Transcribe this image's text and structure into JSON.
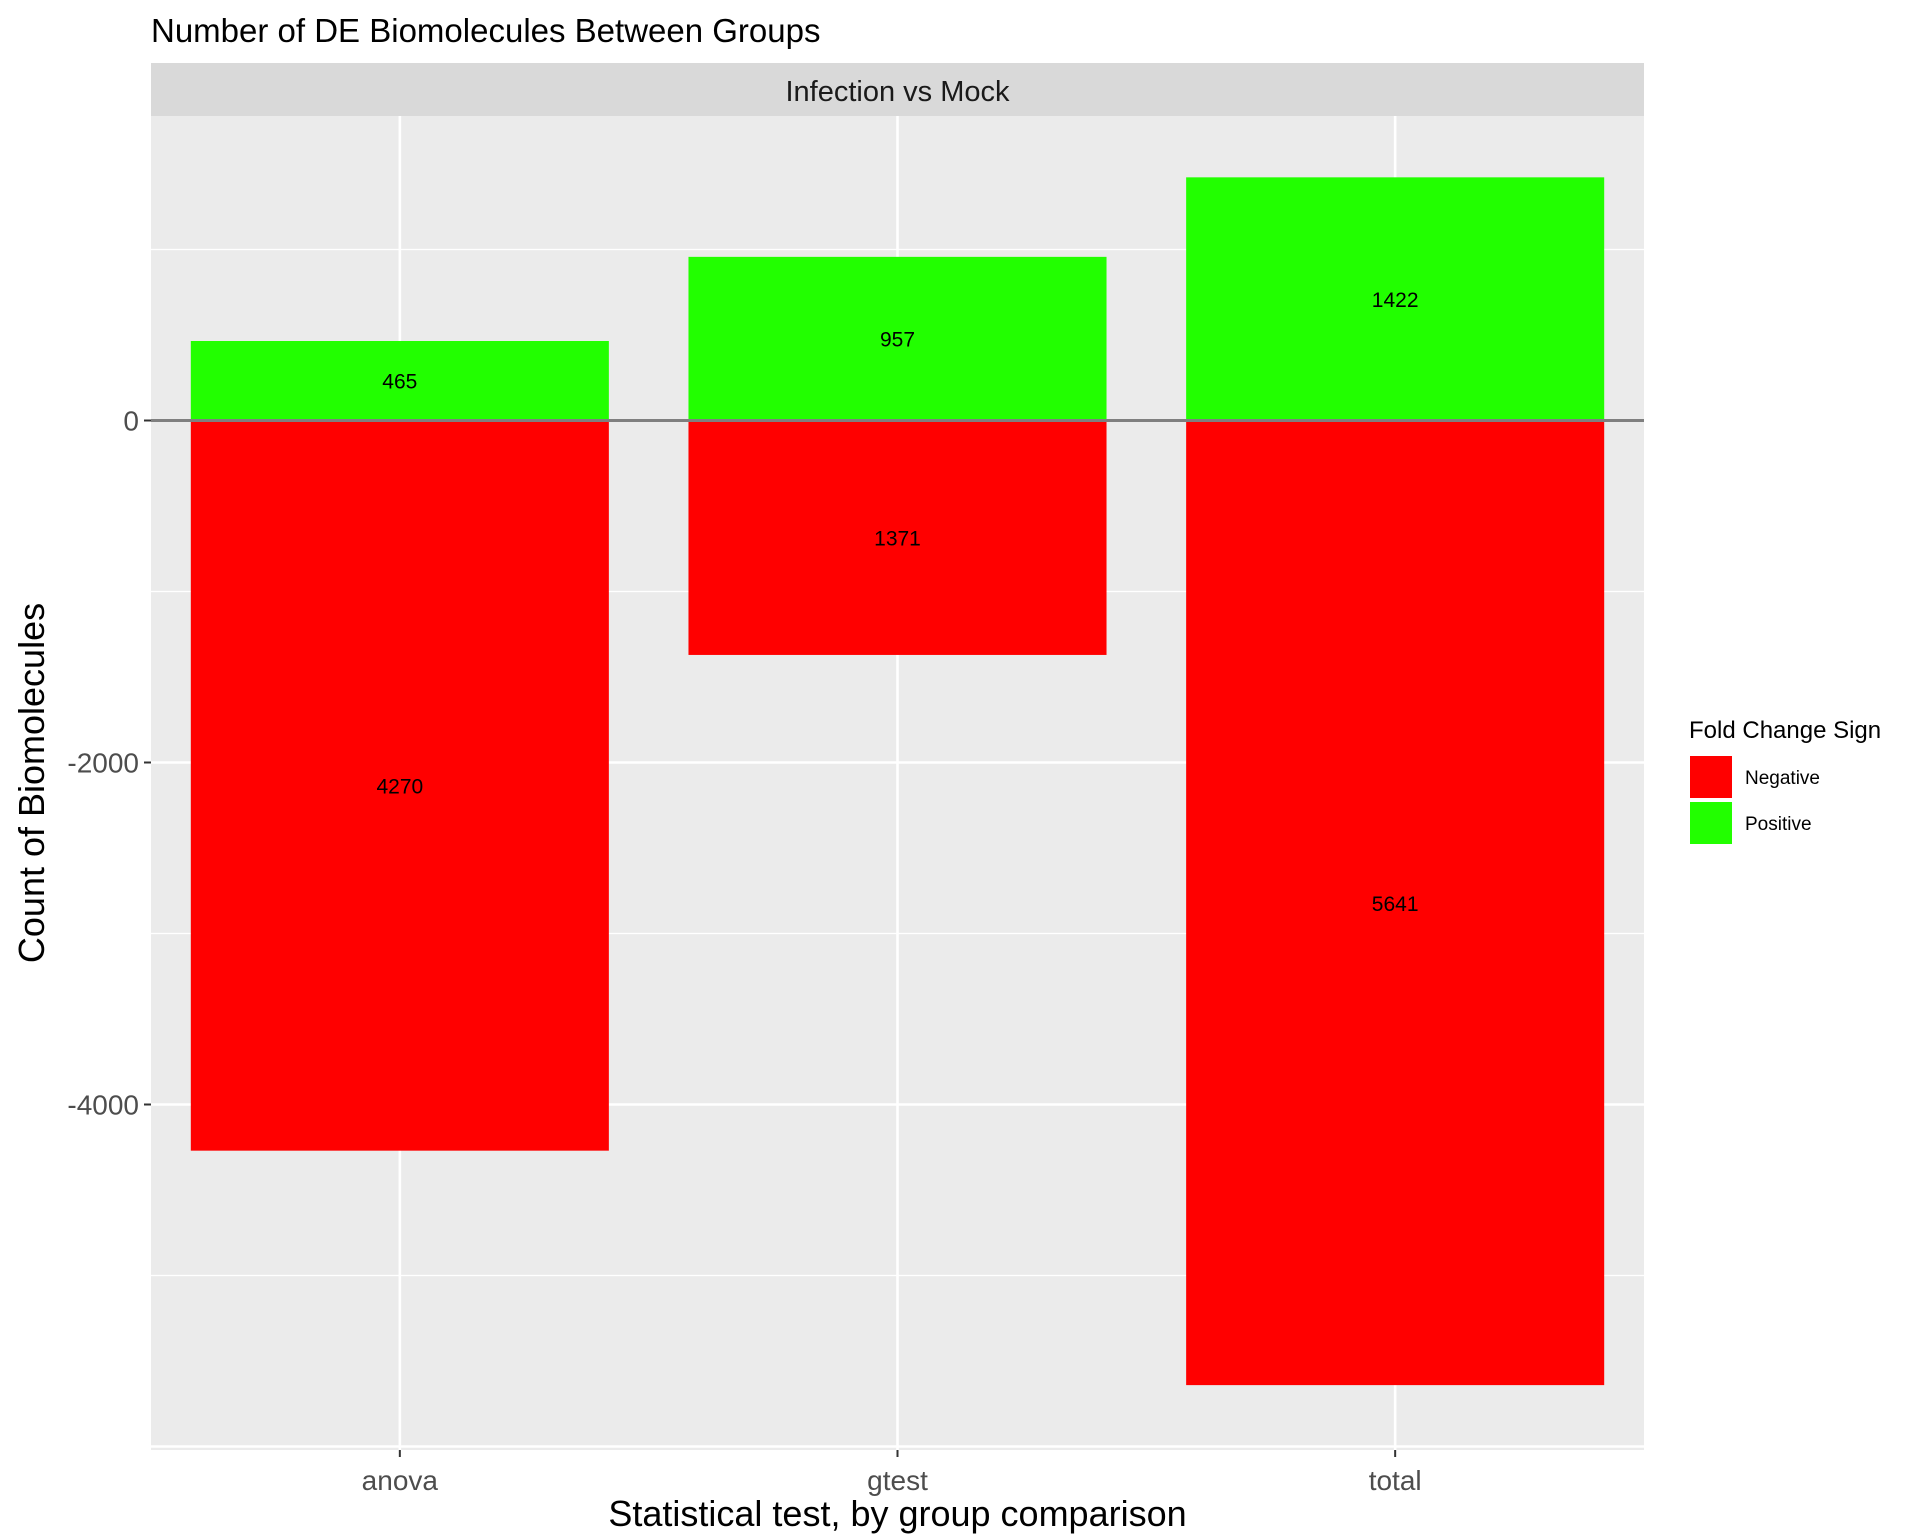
{
  "chart_data": {
    "type": "bar",
    "stacked": true,
    "title": "Number of DE Biomolecules Between Groups",
    "facet_label": "Infection vs Mock",
    "xlabel": "Statistical test, by group comparison",
    "ylabel": "Count of Biomolecules",
    "categories": [
      "anova",
      "gtest",
      "total"
    ],
    "ylim": [
      -6000,
      1800
    ],
    "y_ticks": [
      0,
      -2000,
      -4000
    ],
    "y_tick_labels": [
      "0",
      "-2000",
      "-4000"
    ],
    "grid": true,
    "legend": {
      "title": "Fold Change Sign",
      "position": "right"
    },
    "series": [
      {
        "name": "Negative",
        "color": "#ff0000",
        "values": [
          -4270,
          -1371,
          -5641
        ],
        "labels": [
          "4270",
          "1371",
          "5641"
        ]
      },
      {
        "name": "Positive",
        "color": "#22ff00",
        "values": [
          465,
          957,
          1422
        ],
        "labels": [
          "465",
          "957",
          "1422"
        ]
      }
    ]
  }
}
